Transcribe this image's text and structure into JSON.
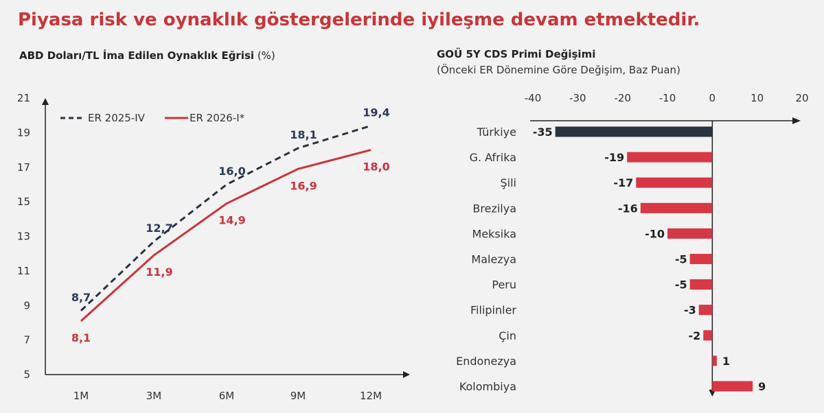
{
  "headline": "Piyasa risk ve oynaklık göstergelerinde iyileşme devam etmektedir.",
  "colors": {
    "headline": "#c8353a",
    "series_dark": "#2a3340",
    "series_red": "#c8353a",
    "label_dark": "#2a3a55",
    "bar_turkey": "#2a3340",
    "bar_other": "#d63845"
  },
  "chart_data": [
    {
      "type": "line",
      "title": "ABD Doları/TL İma Edilen Oynaklık Eğrisi",
      "title_unit": "(%)",
      "categories": [
        "1M",
        "3M",
        "6M",
        "9M",
        "12M"
      ],
      "ylim": [
        5,
        21
      ],
      "yticks": [
        "5",
        "7",
        "9",
        "11",
        "13",
        "15",
        "17",
        "19",
        "21"
      ],
      "legend_position": "top-left",
      "grid": false,
      "series": [
        {
          "name": "ER 2025-IV",
          "style": "dashed",
          "values": [
            8.7,
            12.7,
            16.0,
            18.1,
            19.4
          ],
          "labels": [
            "8,7",
            "12,7",
            "16,0",
            "18,1",
            "19,4"
          ]
        },
        {
          "name": "ER 2026-I*",
          "style": "solid",
          "values": [
            8.1,
            11.9,
            14.9,
            16.9,
            18.0
          ],
          "labels": [
            "8,1",
            "11,9",
            "14,9",
            "16,9",
            "18,0"
          ]
        }
      ]
    },
    {
      "type": "bar",
      "orientation": "horizontal",
      "title": "GOÜ 5Y CDS Primi Değişimi",
      "subtitle": "(Önceki ER Dönemine Göre Değişim, Baz Puan)",
      "xlim": [
        -40,
        20
      ],
      "xticks": [
        "-40",
        "-30",
        "-20",
        "-10",
        "0",
        "10",
        "20"
      ],
      "grid": false,
      "categories": [
        "Türkiye",
        "G. Afrika",
        "Şili",
        "Brezilya",
        "Meksika",
        "Malezya",
        "Peru",
        "Filipinler",
        "Çin",
        "Endonezya",
        "Kolombiya"
      ],
      "values": [
        -35,
        -19,
        -17,
        -16,
        -10,
        -5,
        -5,
        -3,
        -2,
        1,
        9
      ],
      "labels": [
        "-35",
        "-19",
        "-17",
        "-16",
        "-10",
        "-5",
        "-5",
        "-3",
        "-2",
        "1",
        "9"
      ]
    }
  ]
}
